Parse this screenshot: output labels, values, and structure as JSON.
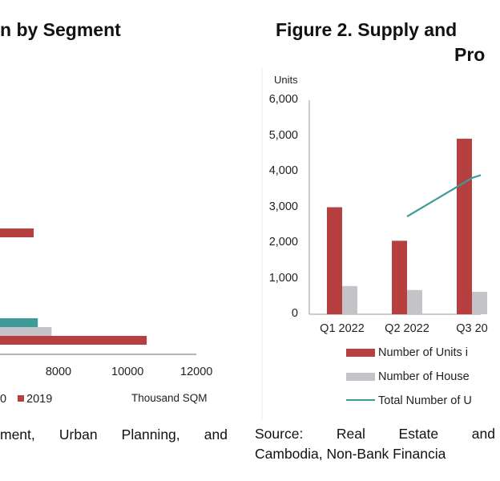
{
  "left_figure": {
    "title": "n by Segment",
    "caption": [
      "ment,",
      "Urban",
      "Planning,",
      "and"
    ]
  },
  "right_figure": {
    "title_line1": "Figure 2. Supply and",
    "title_line2": "Pro",
    "source_line1": [
      "Source:",
      "Real",
      "Estate",
      "and"
    ],
    "source_line2": "Cambodia, Non-Bank Financia"
  },
  "chart_data": [
    {
      "type": "bar",
      "orientation": "horizontal",
      "title": "n by Segment",
      "xlabel": "Thousand SQM",
      "xticks": [
        "8000",
        "10000",
        "12000"
      ],
      "xlim": [
        0,
        12000
      ],
      "legend": [
        {
          "name": "0",
          "color": "#b9b9be"
        },
        {
          "name": "2019",
          "color": "#b5403f"
        }
      ],
      "legend_placement": "bottom",
      "bars": [
        {
          "series_color": "#b5403f",
          "value": 7280
        },
        {
          "series_color": "#3f9a9a",
          "value": 7400
        },
        {
          "series_color": "#c4c4c8",
          "value": 7800
        },
        {
          "series_color": "#b5403f",
          "value": 10560
        }
      ]
    },
    {
      "type": "bar+line",
      "title": "Figure 2. Supply and Pro",
      "ylabel": "Units",
      "ylim": [
        0,
        6000
      ],
      "yticks": [
        "0",
        "1,000",
        "2,000",
        "3,000",
        "4,000",
        "5,000",
        "6,000"
      ],
      "categories": [
        "Q1 2022",
        "Q2 2022",
        "Q3 20"
      ],
      "legend_placement": "bottom",
      "series": [
        {
          "name": "Number of Units i",
          "type": "bar",
          "color": "#b5403f",
          "values": [
            3000,
            2060,
            4920
          ]
        },
        {
          "name": "Number of House",
          "type": "bar",
          "color": "#c4c4c8",
          "values": [
            790,
            680,
            630
          ]
        },
        {
          "name": "Total Number of U",
          "type": "line",
          "color": "#3f9a9a",
          "values": [
            null,
            2740,
            3820
          ]
        }
      ]
    }
  ]
}
